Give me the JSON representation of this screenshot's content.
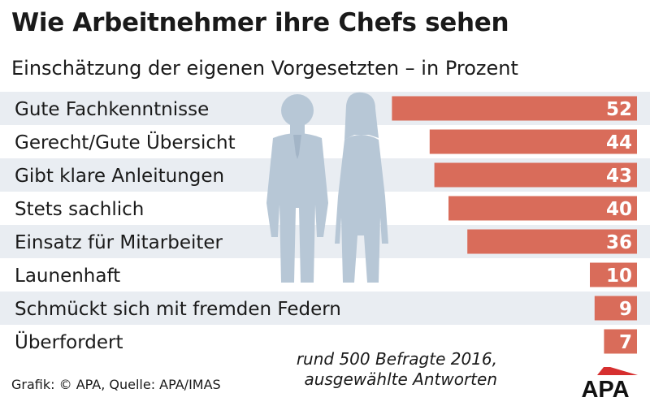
{
  "header": {
    "title": "Wie Arbeitnehmer ihre Chefs sehen",
    "subtitle": "Einschätzung der eigenen Vorgesetzten – in Prozent"
  },
  "footer": {
    "credit": "Grafik: © APA, Quelle: APA/IMAS",
    "note_line1": "rund 500 Befragte 2016,",
    "note_line2": "ausgewählte Antworten",
    "logo_text": "APA"
  },
  "colors": {
    "bar": "#d96c5a",
    "row_band": "#e9edf2",
    "silhouette": "#b7c7d6",
    "silhouette_dark": "#a3b5c7",
    "text": "#1a1a1a",
    "logo_red": "#d62f2f"
  },
  "chart_data": {
    "type": "bar",
    "orientation": "horizontal",
    "categories": [
      "Gute Fachkenntnisse",
      "Gerecht/Gute Übersicht",
      "Gibt klare Anleitungen",
      "Stets sachlich",
      "Einsatz für Mitarbeiter",
      "Launenhaft",
      "Schmückt sich mit fremden Federn",
      "Überfordert"
    ],
    "values": [
      52,
      44,
      43,
      40,
      36,
      10,
      9,
      7
    ],
    "unit": "Prozent",
    "xlim": [
      0,
      100
    ],
    "grid": false,
    "legend": "none"
  }
}
